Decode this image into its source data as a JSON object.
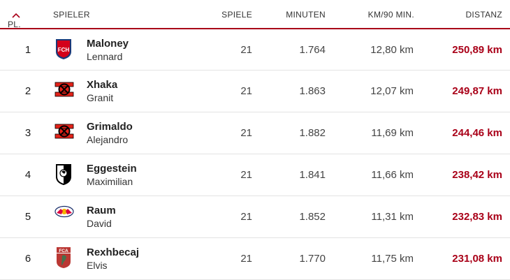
{
  "headers": {
    "pl": "PL.",
    "spieler": "SPIELER",
    "spiele": "SPIELE",
    "minuten": "MINUTEN",
    "km90": "KM/90 MIN.",
    "distanz": "DISTANZ"
  },
  "sort_icon": "chevron-up-icon",
  "accent_color": "#a90018",
  "rows": [
    {
      "pl": "1",
      "last": "Maloney",
      "first": "Lennard",
      "club": "heidenheim",
      "club_text": "FCH",
      "spiele": "21",
      "minuten": "1.764",
      "km90": "12,80 km",
      "distanz": "250,89 km"
    },
    {
      "pl": "2",
      "last": "Xhaka",
      "first": "Granit",
      "club": "leverkusen",
      "club_text": "",
      "spiele": "21",
      "minuten": "1.863",
      "km90": "12,07 km",
      "distanz": "249,87 km"
    },
    {
      "pl": "3",
      "last": "Grimaldo",
      "first": "Alejandro",
      "club": "leverkusen",
      "club_text": "",
      "spiele": "21",
      "minuten": "1.882",
      "km90": "11,69 km",
      "distanz": "244,46 km"
    },
    {
      "pl": "4",
      "last": "Eggestein",
      "first": "Maximilian",
      "club": "freiburg",
      "club_text": "",
      "spiele": "21",
      "minuten": "1.841",
      "km90": "11,66 km",
      "distanz": "238,42 km"
    },
    {
      "pl": "5",
      "last": "Raum",
      "first": "David",
      "club": "leipzig",
      "club_text": "",
      "spiele": "21",
      "minuten": "1.852",
      "km90": "11,31 km",
      "distanz": "232,83 km"
    },
    {
      "pl": "6",
      "last": "Rexhbecaj",
      "first": "Elvis",
      "club": "augsburg",
      "club_text": "FCA",
      "spiele": "21",
      "minuten": "1.770",
      "km90": "11,75 km",
      "distanz": "231,08 km"
    }
  ]
}
